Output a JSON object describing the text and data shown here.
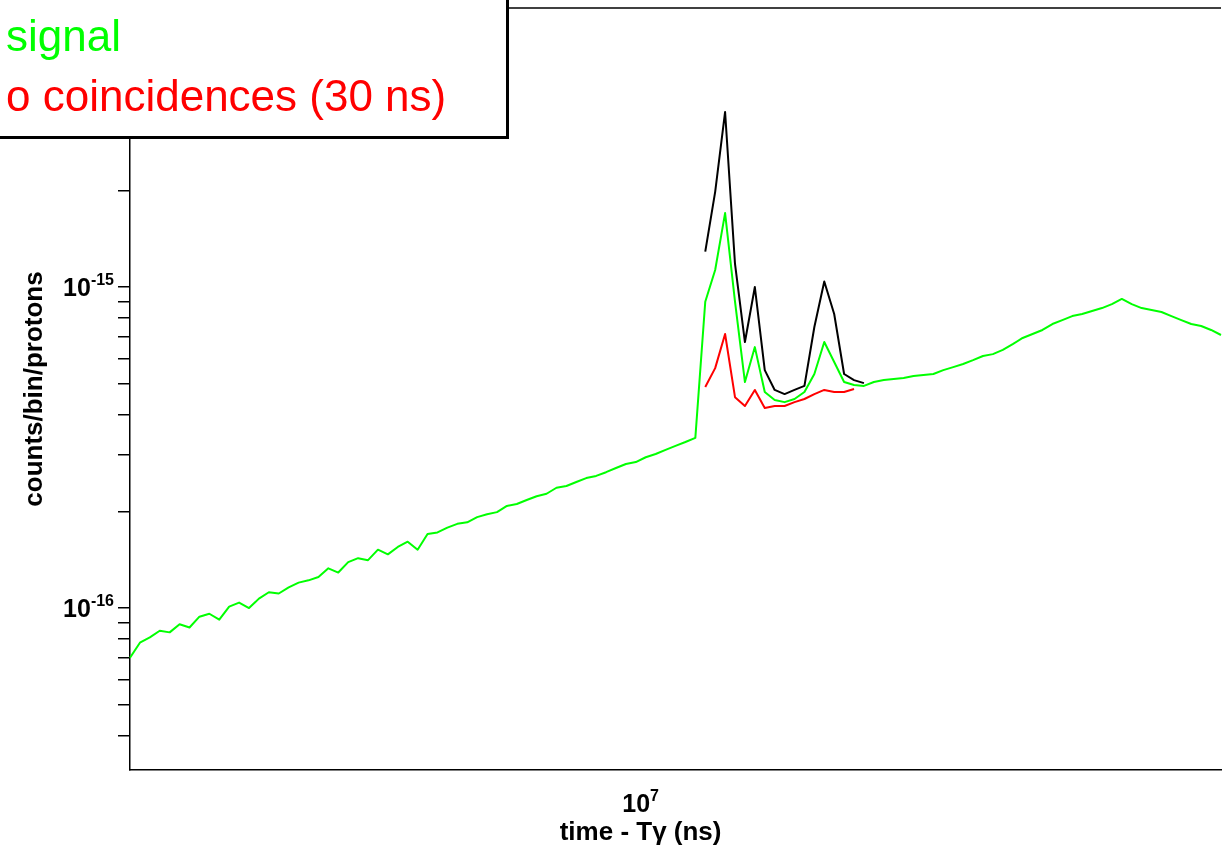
{
  "chart_data": {
    "type": "line",
    "xlabel": "time - Tγ (ns)",
    "ylabel": "counts/bin/protons",
    "log": "y",
    "grid": false,
    "legend": "top left",
    "marker": "none",
    "line_style": "solid",
    "annotations": [
      "10$^{7}$"
    ],
    "categories": [
      null,
      null,
      null,
      null,
      null,
      null,
      null,
      null,
      null,
      null,
      null,
      null,
      null,
      null,
      null,
      null,
      null,
      null,
      null,
      null,
      null,
      null,
      null,
      null,
      null,
      null,
      null,
      null,
      null,
      null,
      null,
      null,
      null,
      null,
      null,
      null,
      null,
      null,
      null,
      null,
      null,
      null,
      null,
      null,
      null,
      null,
      null,
      null,
      null,
      null,
      null,
      null,
      null,
      null,
      null,
      null,
      null,
      null,
      null,
      null,
      null,
      null,
      null,
      null,
      null,
      null,
      null,
      null,
      null,
      null,
      null,
      null,
      null,
      null,
      null,
      null,
      null,
      null,
      null,
      null,
      null,
      null,
      null,
      null,
      null,
      null,
      null,
      null,
      null,
      null,
      null,
      null,
      null,
      null,
      null,
      null,
      null,
      null,
      null,
      null,
      null,
      null,
      null,
      null,
      null,
      null,
      null,
      null,
      null,
      null,
      null
    ],
    "ylim": [
      3.13e-17,
      7.4e-15
    ],
    "yticks": [
      {
        "value": 4e-17,
        "label": null
      },
      {
        "value": 5e-17,
        "label": null
      },
      {
        "value": 6e-17,
        "label": null
      },
      {
        "value": 7e-17,
        "label": null
      },
      {
        "value": 8e-17,
        "label": null
      },
      {
        "value": 9e-17,
        "label": null
      },
      {
        "value": 1e-16,
        "label": "10$^{-16}$"
      },
      {
        "value": 2e-16,
        "label": null
      },
      {
        "value": 3e-16,
        "label": null
      },
      {
        "value": 4e-16,
        "label": null
      },
      {
        "value": 5e-16,
        "label": null
      },
      {
        "value": 6e-16,
        "label": null
      },
      {
        "value": 7e-16,
        "label": null
      },
      {
        "value": 8e-16,
        "label": null
      },
      {
        "value": 9e-16,
        "label": null
      },
      {
        "value": 1e-15,
        "label": "10$^{-15}$"
      },
      {
        "value": 2e-15,
        "label": null
      }
    ],
    "series": [
      {
        "color": "#000000",
        "values": [
          null,
          null,
          null,
          null,
          null,
          null,
          null,
          null,
          null,
          null,
          null,
          null,
          null,
          null,
          null,
          null,
          null,
          null,
          null,
          null,
          null,
          null,
          null,
          null,
          null,
          null,
          null,
          null,
          null,
          null,
          null,
          null,
          null,
          null,
          null,
          null,
          null,
          null,
          null,
          null,
          null,
          null,
          null,
          null,
          null,
          null,
          null,
          null,
          null,
          null,
          null,
          null,
          null,
          null,
          null,
          null,
          null,
          null,
          1.29e-15,
          1.98e-15,
          3.51e-15,
          1.18e-15,
          6.74e-16,
          1e-15,
          5.51e-16,
          4.78e-16,
          4.64e-16,
          4.78e-16,
          4.92e-16,
          7.51e-16,
          1.04e-15,
          8.24e-16,
          5.36e-16,
          5.13e-16,
          5.02e-16,
          null,
          null,
          null,
          null,
          null,
          null,
          null,
          null,
          null,
          null,
          null,
          null,
          null,
          null,
          null,
          null,
          null,
          null,
          null,
          null,
          null,
          null,
          null,
          null,
          null,
          null,
          null,
          null,
          null,
          null,
          null,
          null,
          null,
          null,
          null,
          null
        ]
      },
      {
        "name": "o coincidences (30 ns)",
        "color": "#ff0000",
        "values": [
          null,
          null,
          null,
          null,
          null,
          null,
          null,
          null,
          null,
          null,
          null,
          null,
          null,
          null,
          null,
          null,
          null,
          null,
          null,
          null,
          null,
          null,
          null,
          null,
          null,
          null,
          null,
          null,
          null,
          null,
          null,
          null,
          null,
          null,
          null,
          null,
          null,
          null,
          null,
          null,
          null,
          null,
          null,
          null,
          null,
          null,
          null,
          null,
          null,
          null,
          null,
          null,
          null,
          null,
          null,
          null,
          null,
          null,
          4.88e-16,
          5.59e-16,
          7.14e-16,
          4.54e-16,
          4.26e-16,
          4.78e-16,
          4.2e-16,
          4.26e-16,
          4.26e-16,
          4.38e-16,
          4.48e-16,
          4.64e-16,
          4.78e-16,
          4.71e-16,
          4.71e-16,
          4.81e-16,
          null,
          null,
          null,
          null,
          null,
          null,
          null,
          null,
          null,
          null,
          null,
          null,
          null,
          null,
          null,
          null,
          null,
          null,
          null,
          null,
          null,
          null,
          null,
          null,
          null,
          null,
          null,
          null,
          null,
          null,
          null,
          null,
          null,
          null,
          null,
          null,
          null
        ]
      },
      {
        "name": "signal",
        "color": "#00ff00",
        "values": [
          7e-17,
          7.8e-17,
          8.1e-17,
          8.5e-17,
          8.4e-17,
          8.9e-17,
          8.7e-17,
          9.4e-17,
          9.6e-17,
          9.2e-17,
          1.01e-16,
          1.04e-16,
          1e-16,
          1.07e-16,
          1.12e-16,
          1.11e-16,
          1.16e-16,
          1.2e-16,
          1.22e-16,
          1.25e-16,
          1.33e-16,
          1.29e-16,
          1.39e-16,
          1.43e-16,
          1.41e-16,
          1.52e-16,
          1.47e-16,
          1.55e-16,
          1.61e-16,
          1.52e-16,
          1.7e-16,
          1.72e-16,
          1.78e-16,
          1.83e-16,
          1.85e-16,
          1.92e-16,
          1.96e-16,
          1.99e-16,
          2.08e-16,
          2.11e-16,
          2.17e-16,
          2.23e-16,
          2.27e-16,
          2.37e-16,
          2.4e-16,
          2.47e-16,
          2.54e-16,
          2.58e-16,
          2.65e-16,
          2.73e-16,
          2.81e-16,
          2.85e-16,
          2.95e-16,
          3.02e-16,
          3.11e-16,
          3.2e-16,
          3.29e-16,
          3.39e-16,
          9e-16,
          1.13e-15,
          1.7e-15,
          9e-16,
          5.06e-16,
          6.5e-16,
          4.71e-16,
          4.45e-16,
          4.38e-16,
          4.48e-16,
          4.71e-16,
          5.36e-16,
          6.74e-16,
          5.84e-16,
          5.06e-16,
          4.95e-16,
          4.92e-16,
          5.06e-16,
          5.13e-16,
          5.17e-16,
          5.21e-16,
          5.28e-16,
          5.32e-16,
          5.36e-16,
          5.51e-16,
          5.63e-16,
          5.76e-16,
          5.92e-16,
          6.1e-16,
          6.18e-16,
          6.37e-16,
          6.64e-16,
          6.94e-16,
          7.14e-16,
          7.35e-16,
          7.67e-16,
          7.89e-16,
          8.12e-16,
          8.24e-16,
          8.42e-16,
          8.6e-16,
          8.85e-16,
          9.18e-16,
          8.85e-16,
          8.6e-16,
          8.48e-16,
          8.36e-16,
          8.12e-16,
          7.89e-16,
          7.67e-16,
          7.56e-16,
          7.35e-16,
          7.09e-16
        ]
      }
    ]
  }
}
